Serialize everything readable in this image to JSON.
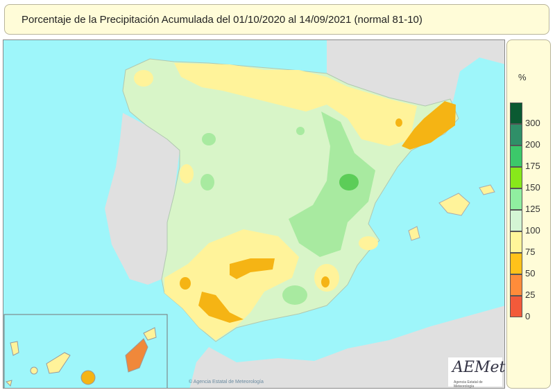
{
  "title": "Porcentaje de la Precipitación Acumulada del 01/10/2020 al 14/09/2021 (normal 81-10)",
  "legend": {
    "unit": "%",
    "classes": [
      {
        "label": "300",
        "color": "#0a5a32"
      },
      {
        "label": "200",
        "color": "#2f8f68"
      },
      {
        "label": "175",
        "color": "#3cc86a"
      },
      {
        "label": "150",
        "color": "#88e81a"
      },
      {
        "label": "125",
        "color": "#90eea0"
      },
      {
        "label": "100",
        "color": "#d4f5d4"
      },
      {
        "label": "75",
        "color": "#fff59a"
      },
      {
        "label": "50",
        "color": "#ffc21a"
      },
      {
        "label": "25",
        "color": "#ff8c3a"
      },
      {
        "label": "0",
        "color": "#f25a3a"
      }
    ]
  },
  "logo": {
    "text": "AEMet",
    "subtitle": "Agencia Estatal de Meteorología"
  },
  "credit": "© Agencia Estatal de Meteorología",
  "colors": {
    "sea": "#9ef6fa",
    "land_other": "#e0e0e0"
  }
}
